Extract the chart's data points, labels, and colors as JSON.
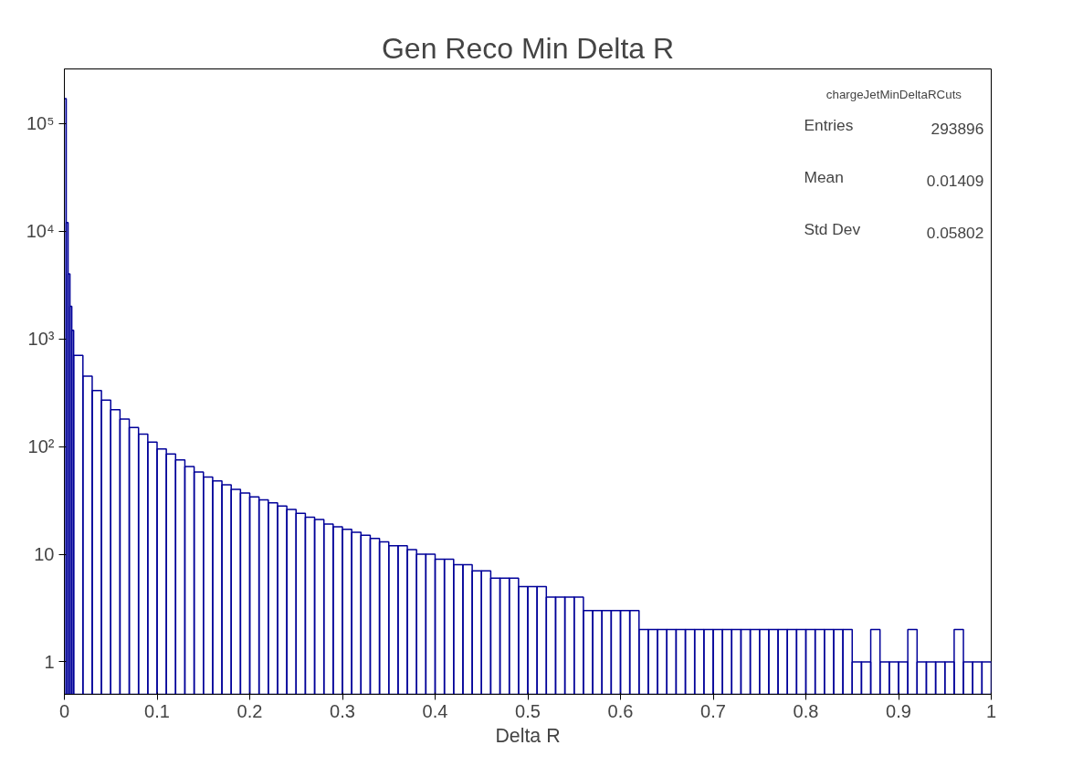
{
  "chart_data": {
    "type": "histogram",
    "title": "Gen Reco Min Delta R",
    "xlabel": "Delta R",
    "bins": [
      0,
      0.002,
      0.004,
      0.006,
      0.008,
      0.01,
      0.02,
      0.03,
      0.04,
      0.05,
      0.06,
      0.07,
      0.08,
      0.09,
      0.1,
      0.11,
      0.12,
      0.13,
      0.14,
      0.15,
      0.16,
      0.17,
      0.18,
      0.19,
      0.2,
      0.21,
      0.22,
      0.23,
      0.24,
      0.25,
      0.26,
      0.27,
      0.28,
      0.29,
      0.3,
      0.31,
      0.32,
      0.33,
      0.34,
      0.35,
      0.36,
      0.37,
      0.38,
      0.39,
      0.4,
      0.41,
      0.42,
      0.43,
      0.44,
      0.45,
      0.46,
      0.47,
      0.48,
      0.49,
      0.5,
      0.51,
      0.52,
      0.53,
      0.54,
      0.55,
      0.56,
      0.57,
      0.58,
      0.59,
      0.6,
      0.61,
      0.62,
      0.63,
      0.64,
      0.65,
      0.66,
      0.67,
      0.68,
      0.69,
      0.7,
      0.71,
      0.72,
      0.73,
      0.74,
      0.75,
      0.76,
      0.77,
      0.78,
      0.79,
      0.8,
      0.81,
      0.82,
      0.83,
      0.84,
      0.85,
      0.86,
      0.87,
      0.88,
      0.89,
      0.9,
      0.91,
      0.92,
      0.93,
      0.94,
      0.95,
      0.96,
      0.97,
      0.98,
      0.99,
      1.0
    ],
    "values": [
      170000,
      12000,
      4000,
      2000,
      1200,
      700,
      450,
      330,
      270,
      220,
      180,
      150,
      130,
      110,
      95,
      85,
      75,
      65,
      58,
      52,
      48,
      44,
      40,
      37,
      34,
      32,
      30,
      28,
      26,
      24,
      22,
      21,
      19,
      18,
      17,
      16,
      15,
      14,
      13,
      12,
      12,
      11,
      10,
      10,
      9,
      9,
      8,
      8,
      7,
      7,
      6,
      6,
      6,
      5,
      5,
      5,
      4,
      4,
      4,
      4,
      3,
      3,
      3,
      3,
      3,
      3,
      2,
      2,
      2,
      2,
      2,
      2,
      2,
      2,
      2,
      2,
      2,
      2,
      2,
      2,
      2,
      2,
      2,
      2,
      2,
      2,
      2,
      2,
      2,
      1,
      1,
      2,
      1,
      1,
      1,
      2,
      1,
      1,
      1,
      1,
      2,
      1,
      1,
      1
    ],
    "color": "#000099",
    "log": "y",
    "xlim": [
      0,
      1
    ],
    "ylim": [
      0.5,
      320000
    ],
    "xticks": [
      0,
      0.1,
      0.2,
      0.3,
      0.4,
      0.5,
      0.6,
      0.7,
      0.8,
      0.9,
      1
    ],
    "yticks": [
      1,
      10,
      {
        "value": 100,
        "label": "10²"
      },
      {
        "value": 1000,
        "label": "10³"
      },
      {
        "value": 10000,
        "label": "10⁴"
      },
      {
        "value": 100000,
        "label": "10⁵"
      }
    ],
    "grid": false,
    "annotations": [
      "chargeJetMinDeltaRCuts",
      "Entries",
      "293896",
      "Mean",
      "0.01409",
      "Std Dev",
      "0.05802"
    ]
  }
}
